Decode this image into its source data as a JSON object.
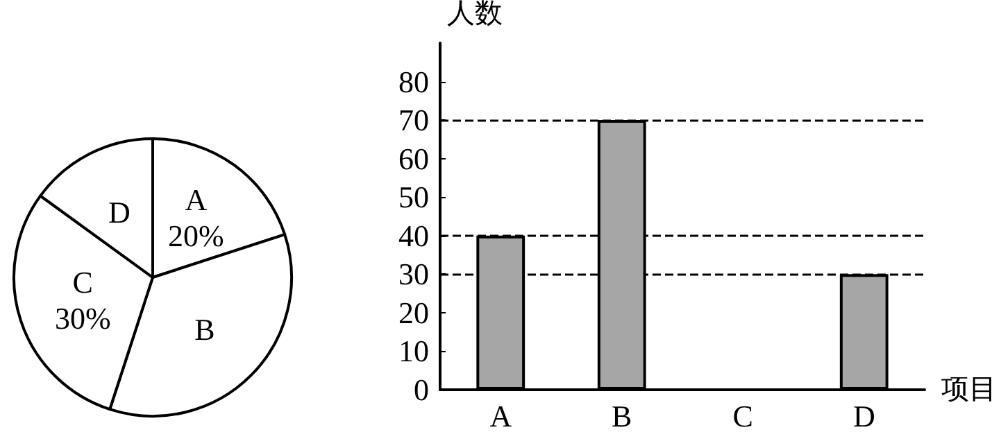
{
  "chart_data": [
    {
      "type": "pie",
      "categories": [
        "A",
        "B",
        "C",
        "D"
      ],
      "values": [
        20,
        35,
        30,
        15
      ],
      "colors": [
        "#ffffff",
        "#ffffff",
        "#ffffff",
        "#ffffff"
      ],
      "value_labels": [
        "20%",
        null,
        "30%",
        null
      ]
    },
    {
      "type": "bar",
      "categories": [
        "A",
        "B",
        "C",
        "D"
      ],
      "values": [
        40,
        70,
        null,
        30
      ],
      "color": "#a6a6a6",
      "xlabel": "项目",
      "ylabel": "人数",
      "ylim": [
        0,
        90
      ],
      "yticks": [
        0,
        10,
        20,
        30,
        40,
        50,
        60,
        70,
        80
      ],
      "grid": false,
      "ref_lines": [
        {
          "axis": "y",
          "value": 70,
          "line_style": "dashed"
        },
        {
          "axis": "y",
          "value": 40,
          "line_style": "dashed"
        },
        {
          "axis": "y",
          "value": 30,
          "line_style": "dashed"
        }
      ]
    }
  ]
}
